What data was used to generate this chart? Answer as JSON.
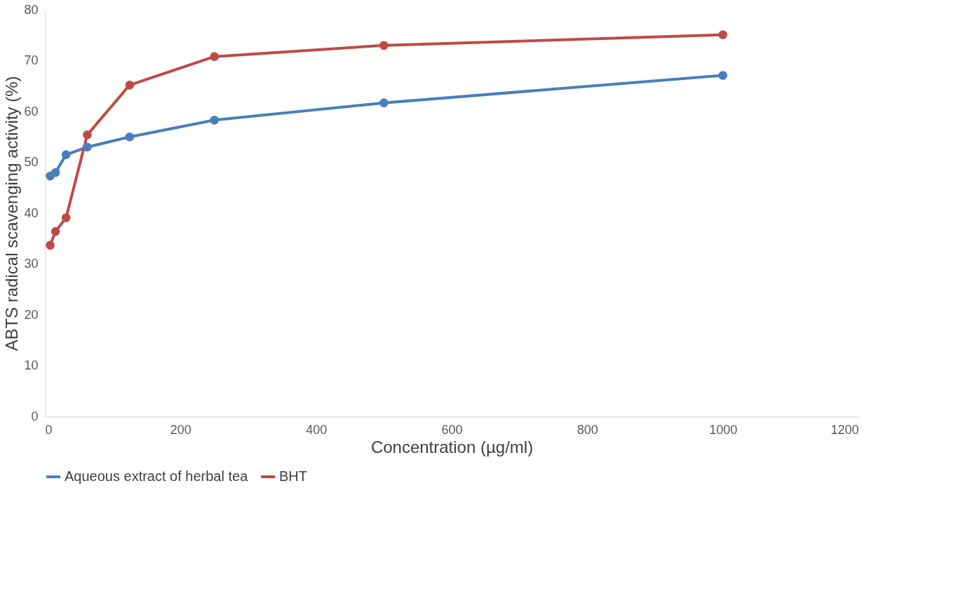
{
  "chart_data": {
    "type": "line",
    "xlabel": "Concentration (µg/ml)",
    "ylabel": "ABTS radical scavenging activity (%)",
    "x": [
      7.8125,
      15.625,
      31.25,
      62.5,
      125,
      250,
      500,
      1000
    ],
    "series": [
      {
        "name": "Aqueous extract of herbal tea",
        "color": "#4a7ebb",
        "values": [
          47.3,
          48.0,
          51.5,
          53.0,
          55.0,
          58.3,
          61.7,
          67.1
        ]
      },
      {
        "name": "BHT",
        "color": "#be4b48",
        "values": [
          33.7,
          36.4,
          39.1,
          55.4,
          65.2,
          70.8,
          73.0,
          75.1
        ]
      }
    ],
    "xlim": [
      0,
      1200
    ],
    "xticks": [
      0,
      200,
      400,
      600,
      800,
      1000,
      1200
    ],
    "ylim": [
      0,
      80
    ],
    "yticks": [
      0,
      10,
      20,
      30,
      40,
      50,
      60,
      70,
      80
    ],
    "grid": false,
    "legend": "bottom",
    "marker": "circle",
    "line_style": "solid"
  }
}
